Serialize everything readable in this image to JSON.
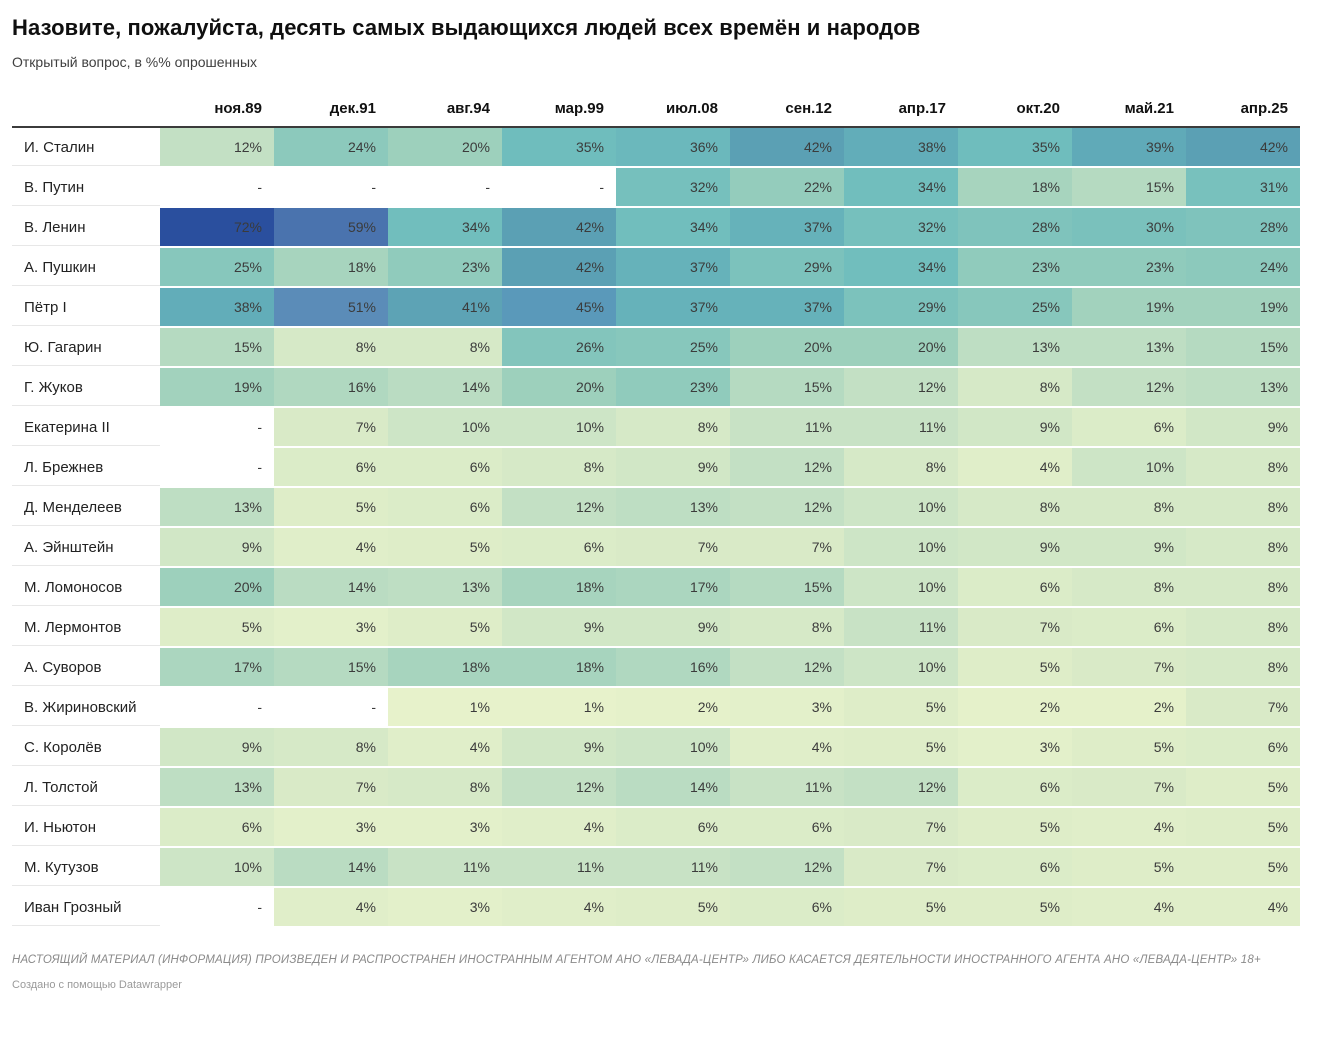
{
  "header": {
    "title": "Назовите, пожалуйста, десять самых выдающихся людей всех времён и народов",
    "subtitle": "Открытый вопрос, в %% опрошенных"
  },
  "chart_data": {
    "type": "heatmap",
    "title": "Назовите, пожалуйста, десять самых выдающихся людей всех времён и народов",
    "subtitle": "Открытый вопрос, в %% опрошенных",
    "value_suffix": "%",
    "empty_marker": "-",
    "value_range": [
      1,
      72
    ],
    "columns": [
      "ноя.89",
      "дек.91",
      "авг.94",
      "мар.99",
      "июл.08",
      "сен.12",
      "апр.17",
      "окт.20",
      "май.21",
      "апр.25"
    ],
    "rows": [
      {
        "name": "И. Сталин",
        "values": [
          12,
          24,
          20,
          35,
          36,
          42,
          38,
          35,
          39,
          42
        ]
      },
      {
        "name": "В. Путин",
        "values": [
          null,
          null,
          null,
          null,
          32,
          22,
          34,
          18,
          15,
          31
        ]
      },
      {
        "name": "В. Ленин",
        "values": [
          72,
          59,
          34,
          42,
          34,
          37,
          32,
          28,
          30,
          28
        ]
      },
      {
        "name": "А. Пушкин",
        "values": [
          25,
          18,
          23,
          42,
          37,
          29,
          34,
          23,
          23,
          24
        ]
      },
      {
        "name": "Пётр I",
        "values": [
          38,
          51,
          41,
          45,
          37,
          37,
          29,
          25,
          19,
          19
        ]
      },
      {
        "name": "Ю. Гагарин",
        "values": [
          15,
          8,
          8,
          26,
          25,
          20,
          20,
          13,
          13,
          15
        ]
      },
      {
        "name": "Г. Жуков",
        "values": [
          19,
          16,
          14,
          20,
          23,
          15,
          12,
          8,
          12,
          13
        ]
      },
      {
        "name": "Екатерина II",
        "values": [
          null,
          7,
          10,
          10,
          8,
          11,
          11,
          9,
          6,
          9
        ]
      },
      {
        "name": "Л. Брежнев",
        "values": [
          null,
          6,
          6,
          8,
          9,
          12,
          8,
          4,
          10,
          8
        ]
      },
      {
        "name": "Д. Менделеев",
        "values": [
          13,
          5,
          6,
          12,
          13,
          12,
          10,
          8,
          8,
          8
        ]
      },
      {
        "name": "А. Эйнштейн",
        "values": [
          9,
          4,
          5,
          6,
          7,
          7,
          10,
          9,
          9,
          8
        ]
      },
      {
        "name": "М. Ломоносов",
        "values": [
          20,
          14,
          13,
          18,
          17,
          15,
          10,
          6,
          8,
          8
        ]
      },
      {
        "name": "М. Лермонтов",
        "values": [
          5,
          3,
          5,
          9,
          9,
          8,
          11,
          7,
          6,
          8
        ]
      },
      {
        "name": "А. Суворов",
        "values": [
          17,
          15,
          18,
          18,
          16,
          12,
          10,
          5,
          7,
          8
        ]
      },
      {
        "name": "В. Жириновский",
        "values": [
          null,
          null,
          1,
          1,
          2,
          3,
          5,
          2,
          2,
          7
        ]
      },
      {
        "name": "С. Королёв",
        "values": [
          9,
          8,
          4,
          9,
          10,
          4,
          5,
          3,
          5,
          6
        ]
      },
      {
        "name": "Л. Толстой",
        "values": [
          13,
          7,
          8,
          12,
          14,
          11,
          12,
          6,
          7,
          5
        ]
      },
      {
        "name": "И. Ньютон",
        "values": [
          6,
          3,
          3,
          4,
          6,
          6,
          7,
          5,
          4,
          5
        ]
      },
      {
        "name": "М. Кутузов",
        "values": [
          10,
          14,
          11,
          11,
          11,
          12,
          7,
          6,
          5,
          5
        ]
      },
      {
        "name": "Иван Грозный",
        "values": [
          null,
          4,
          3,
          4,
          5,
          6,
          5,
          5,
          4,
          4
        ]
      }
    ],
    "color_scale": {
      "stops": [
        [
          1,
          "#e7f2cb"
        ],
        [
          5,
          "#deedc8"
        ],
        [
          8,
          "#d6e9c7"
        ],
        [
          12,
          "#c3e0c4"
        ],
        [
          16,
          "#b0d8c0"
        ],
        [
          20,
          "#9dd0bc"
        ],
        [
          26,
          "#83c5bc"
        ],
        [
          35,
          "#6fbdbd"
        ],
        [
          38,
          "#62adb9"
        ],
        [
          42,
          "#5ba0b4"
        ],
        [
          46,
          "#5996bc"
        ],
        [
          51,
          "#5b8cb8"
        ],
        [
          59,
          "#4a73ae"
        ],
        [
          65,
          "#3a61a6"
        ],
        [
          72,
          "#2a4f9e"
        ]
      ]
    },
    "cell_text_color": "#3b3b3b",
    "empty_cell_color": "#ffffff"
  },
  "footer": {
    "disclaimer": "НАСТОЯЩИЙ МАТЕРИАЛ (ИНФОРМАЦИЯ) ПРОИЗВЕДЕН И РАСПРОСТРАНЕН ИНОСТРАННЫМ АГЕНТОМ АНО «ЛЕВАДА-ЦЕНТР» ЛИБО КАСАЕТСЯ ДЕЯТЕЛЬНОСТИ ИНОСТРАННОГО АГЕНТА АНО «ЛЕВАДА-ЦЕНТР» 18+",
    "attribution": "Создано с помощью Datawrapper"
  }
}
